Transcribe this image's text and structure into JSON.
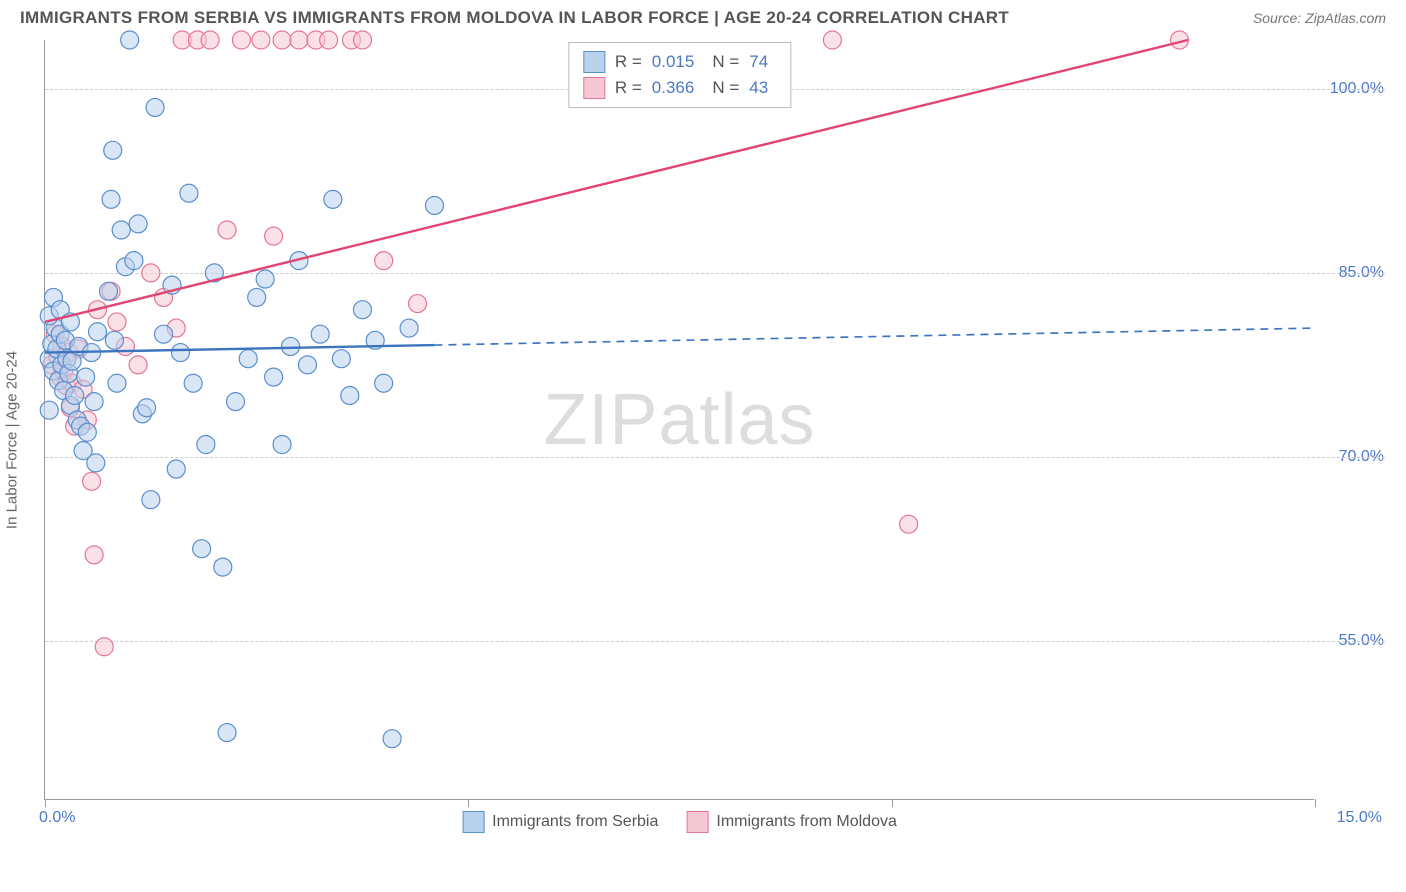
{
  "title": "IMMIGRANTS FROM SERBIA VS IMMIGRANTS FROM MOLDOVA IN LABOR FORCE | AGE 20-24 CORRELATION CHART",
  "source_label": "Source: ZipAtlas.com",
  "watermark_a": "ZIP",
  "watermark_b": "atlas",
  "ylabel": "In Labor Force | Age 20-24",
  "chart": {
    "type": "scatter-correlation",
    "background_color": "#ffffff",
    "grid_color": "#cccccc",
    "axis_color": "#999999",
    "tick_label_color": "#4b79c4",
    "xlim": [
      0,
      15
    ],
    "ylim": [
      42,
      104
    ],
    "yticks": [
      55.0,
      70.0,
      85.0,
      100.0
    ],
    "ytick_labels": [
      "55.0%",
      "70.0%",
      "85.0%",
      "100.0%"
    ],
    "xticks": [
      0,
      5,
      10,
      15
    ],
    "xtick_edge_labels_left": "0.0%",
    "xtick_edge_labels_right": "15.0%",
    "marker_radius": 9,
    "marker_opacity": 0.55,
    "marker_stroke_width": 1.2,
    "line_width": 2.4
  },
  "series": [
    {
      "key": "serbia",
      "label": "Immigrants from Serbia",
      "fill": "#b9d2ec",
      "stroke": "#5b8ecf",
      "line_color": "#3d74c0",
      "R": "0.015",
      "N": "74",
      "trend": {
        "x1": 0,
        "y1": 78.5,
        "x2": 15,
        "y2": 80.5,
        "solid_until_x": 4.6
      },
      "points": [
        [
          0.05,
          78.0
        ],
        [
          0.08,
          79.2
        ],
        [
          0.1,
          77.0
        ],
        [
          0.12,
          80.5
        ],
        [
          0.14,
          78.8
        ],
        [
          0.16,
          76.2
        ],
        [
          0.18,
          80.0
        ],
        [
          0.2,
          77.5
        ],
        [
          0.22,
          75.4
        ],
        [
          0.24,
          79.5
        ],
        [
          0.26,
          78.0
        ],
        [
          0.28,
          76.8
        ],
        [
          0.3,
          74.2
        ],
        [
          0.32,
          77.8
        ],
        [
          0.35,
          75.0
        ],
        [
          0.38,
          73.0
        ],
        [
          0.4,
          79.0
        ],
        [
          0.42,
          72.5
        ],
        [
          0.45,
          70.5
        ],
        [
          0.48,
          76.5
        ],
        [
          0.5,
          72.0
        ],
        [
          0.55,
          78.5
        ],
        [
          0.58,
          74.5
        ],
        [
          0.6,
          69.5
        ],
        [
          0.62,
          80.2
        ],
        [
          0.05,
          81.5
        ],
        [
          0.1,
          83.0
        ],
        [
          0.18,
          82.0
        ],
        [
          0.3,
          81.0
        ],
        [
          0.75,
          83.5
        ],
        [
          0.78,
          91.0
        ],
        [
          0.8,
          95.0
        ],
        [
          0.82,
          79.5
        ],
        [
          0.85,
          76.0
        ],
        [
          0.9,
          88.5
        ],
        [
          0.95,
          85.5
        ],
        [
          1.0,
          104.0
        ],
        [
          1.05,
          86.0
        ],
        [
          1.1,
          89.0
        ],
        [
          1.15,
          73.5
        ],
        [
          1.2,
          74.0
        ],
        [
          1.25,
          66.5
        ],
        [
          1.3,
          98.5
        ],
        [
          1.4,
          80.0
        ],
        [
          1.5,
          84.0
        ],
        [
          1.55,
          69.0
        ],
        [
          1.6,
          78.5
        ],
        [
          1.7,
          91.5
        ],
        [
          1.75,
          76.0
        ],
        [
          1.85,
          62.5
        ],
        [
          1.9,
          71.0
        ],
        [
          2.0,
          85.0
        ],
        [
          2.1,
          61.0
        ],
        [
          2.15,
          47.5
        ],
        [
          2.25,
          74.5
        ],
        [
          2.4,
          78.0
        ],
        [
          2.5,
          83.0
        ],
        [
          2.6,
          84.5
        ],
        [
          2.7,
          76.5
        ],
        [
          2.8,
          71.0
        ],
        [
          2.9,
          79.0
        ],
        [
          3.0,
          86.0
        ],
        [
          3.1,
          77.5
        ],
        [
          3.25,
          80.0
        ],
        [
          3.4,
          91.0
        ],
        [
          3.5,
          78.0
        ],
        [
          3.6,
          75.0
        ],
        [
          3.75,
          82.0
        ],
        [
          3.9,
          79.5
        ],
        [
          4.0,
          76.0
        ],
        [
          4.1,
          47.0
        ],
        [
          4.3,
          80.5
        ],
        [
          4.6,
          90.5
        ],
        [
          0.05,
          73.8
        ]
      ]
    },
    {
      "key": "moldova",
      "label": "Immigrants from Moldova",
      "fill": "#f5c9d3",
      "stroke": "#e57693",
      "line_color": "#e24572",
      "R": "0.366",
      "N": "43",
      "trend": {
        "x1": 0,
        "y1": 81.0,
        "x2": 13.5,
        "y2": 104.0,
        "solid_until_x": 13.5
      },
      "points": [
        [
          0.08,
          77.5
        ],
        [
          0.12,
          80.0
        ],
        [
          0.15,
          78.2
        ],
        [
          0.18,
          76.5
        ],
        [
          0.2,
          79.0
        ],
        [
          0.22,
          77.0
        ],
        [
          0.25,
          75.8
        ],
        [
          0.28,
          78.5
        ],
        [
          0.3,
          74.0
        ],
        [
          0.32,
          76.0
        ],
        [
          0.35,
          72.5
        ],
        [
          0.4,
          78.8
        ],
        [
          0.45,
          75.5
        ],
        [
          0.5,
          73.0
        ],
        [
          0.55,
          68.0
        ],
        [
          0.58,
          62.0
        ],
        [
          0.62,
          82.0
        ],
        [
          0.7,
          54.5
        ],
        [
          0.78,
          83.5
        ],
        [
          0.85,
          81.0
        ],
        [
          0.95,
          79.0
        ],
        [
          1.1,
          77.5
        ],
        [
          1.25,
          85.0
        ],
        [
          1.4,
          83.0
        ],
        [
          1.55,
          80.5
        ],
        [
          1.62,
          104.0
        ],
        [
          1.8,
          104.0
        ],
        [
          1.95,
          104.0
        ],
        [
          2.15,
          88.5
        ],
        [
          2.32,
          104.0
        ],
        [
          2.55,
          104.0
        ],
        [
          2.7,
          88.0
        ],
        [
          2.8,
          104.0
        ],
        [
          3.0,
          104.0
        ],
        [
          3.2,
          104.0
        ],
        [
          3.35,
          104.0
        ],
        [
          3.62,
          104.0
        ],
        [
          3.75,
          104.0
        ],
        [
          4.0,
          86.0
        ],
        [
          4.4,
          82.5
        ],
        [
          9.3,
          104.0
        ],
        [
          10.2,
          64.5
        ],
        [
          13.4,
          104.0
        ]
      ]
    }
  ],
  "stats_labels": {
    "R": "R =",
    "N": "N ="
  },
  "legend_swatch_size": 22,
  "label_fontsize": 15,
  "tick_fontsize": 16,
  "title_fontsize": 17,
  "title_color": "#555555"
}
